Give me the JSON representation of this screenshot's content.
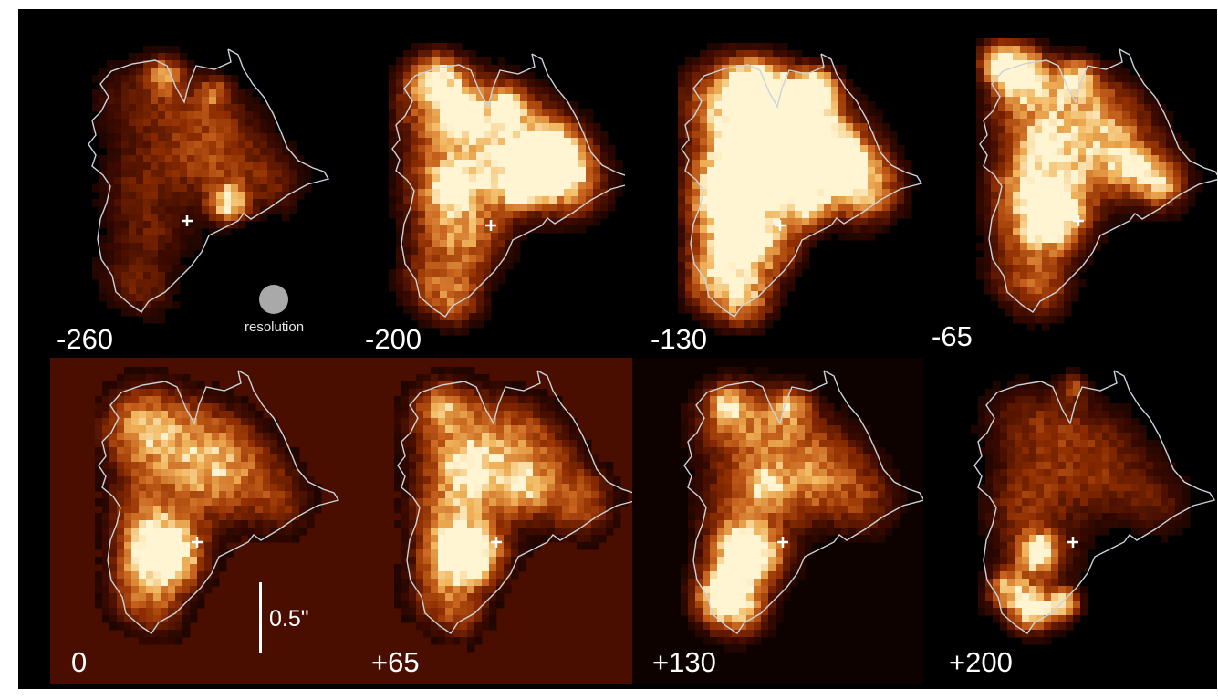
{
  "figure": {
    "panels": [
      {
        "label": "-260",
        "background": "#000000",
        "brightness": 0.28,
        "blobs": [
          {
            "peak": 0.9,
            "size": "small",
            "location": "center-right"
          }
        ]
      },
      {
        "label": "-200",
        "background": "#000000",
        "brightness": 0.62,
        "blobs": [
          {
            "peak": 1.0,
            "size": "medium",
            "location": "upper-right"
          }
        ]
      },
      {
        "label": "-130",
        "background": "#000000",
        "brightness": 0.8,
        "blobs": [
          {
            "peak": 1.0,
            "size": "large",
            "location": "upper-center"
          }
        ]
      },
      {
        "label": "-65",
        "background": "#000000",
        "brightness": 0.48,
        "blobs": [
          {
            "peak": 1.0,
            "size": "medium",
            "location": "center-left"
          }
        ]
      },
      {
        "label": "0",
        "background": "#4a0e00",
        "brightness": 0.36,
        "blobs": [
          {
            "peak": 1.0,
            "size": "large",
            "location": "lower-left"
          }
        ]
      },
      {
        "label": "+65",
        "background": "#4a0e00",
        "brightness": 0.44,
        "blobs": [
          {
            "peak": 1.0,
            "size": "medium",
            "location": "lower-left"
          }
        ]
      },
      {
        "label": "+130",
        "background": "#0e0200",
        "brightness": 0.38,
        "blobs": [
          {
            "peak": 1.0,
            "size": "medium",
            "location": "lower-left"
          }
        ]
      },
      {
        "label": "+200",
        "background": "#000000",
        "brightness": 0.24,
        "blobs": [
          {
            "peak": 1.0,
            "size": "small",
            "location": "lower-left"
          }
        ]
      }
    ],
    "resolution_label": "resolution",
    "scale_bar_label": "0.5\"",
    "colors": {
      "background": "#000000",
      "contour": "#c9d4dc",
      "marker": "#ffffff",
      "resolution_beam": "#a9a9a9",
      "colormap": [
        "#000000",
        "#3c0a00",
        "#8c2c00",
        "#c8641e",
        "#f0b45a",
        "#fff5d2"
      ]
    }
  }
}
